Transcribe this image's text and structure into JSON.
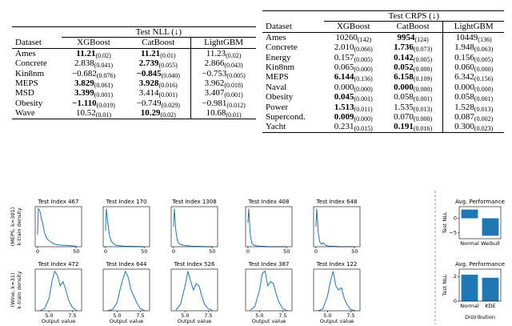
{
  "tables": [
    {
      "caption": "Test NLL (↓)",
      "columns": [
        "Dataset",
        "XGBoost",
        "CatBoost",
        "LightGBM"
      ],
      "rows": [
        {
          "name": "Ames",
          "cells": [
            {
              "value": "11.21",
              "std": "(0.02)",
              "bold": true
            },
            {
              "value": "11.21",
              "std": "(0.01)",
              "bold": true
            },
            {
              "value": "11.23",
              "std": "(0.02)",
              "bold": false
            }
          ]
        },
        {
          "name": "Concrete",
          "cells": [
            {
              "value": "2.838",
              "std": "(0.041)",
              "bold": false
            },
            {
              "value": "2.739",
              "std": "(0.055)",
              "bold": true
            },
            {
              "value": "2.866",
              "std": "(0.043)",
              "bold": false
            }
          ]
        },
        {
          "name": "Kin8nm",
          "cells": [
            {
              "value": "−0.682",
              "std": "(0.076)",
              "bold": false
            },
            {
              "value": "−0.845",
              "std": "(0.040)",
              "bold": true
            },
            {
              "value": "−0.753",
              "std": "(0.005)",
              "bold": false
            }
          ]
        },
        {
          "name": "MEPS",
          "cells": [
            {
              "value": "3.829",
              "std": "(0.061)",
              "bold": true
            },
            {
              "value": "3.928",
              "std": "(0.016)",
              "bold": true
            },
            {
              "value": "3.962",
              "std": "(0.018)",
              "bold": false
            }
          ]
        },
        {
          "name": "MSD",
          "cells": [
            {
              "value": "3.399",
              "std": "(0.001)",
              "bold": true
            },
            {
              "value": "3.414",
              "std": "(0.001)",
              "bold": false
            },
            {
              "value": "3.407",
              "std": "(0.001)",
              "bold": false
            }
          ]
        },
        {
          "name": "Obesity",
          "cells": [
            {
              "value": "−1.110",
              "std": "(0.019)",
              "bold": true
            },
            {
              "value": "−0.749",
              "std": "(0.029)",
              "bold": false
            },
            {
              "value": "−0.981",
              "std": "(0.012)",
              "bold": false
            }
          ]
        },
        {
          "name": "Wave",
          "cells": [
            {
              "value": "10.52",
              "std": "(0.01)",
              "bold": false
            },
            {
              "value": "10.29",
              "std": "(0.02)",
              "bold": true
            },
            {
              "value": "10.68",
              "std": "(0.01)",
              "bold": false
            }
          ]
        }
      ]
    },
    {
      "caption": "Test CRPS (↓)",
      "columns": [
        "Dataset",
        "XGBoost",
        "CatBoost",
        "LightGBM"
      ],
      "rows": [
        {
          "name": "Ames",
          "cells": [
            {
              "value": "10260",
              "std": "(142)",
              "bold": false
            },
            {
              "value": "9954",
              "std": "(124)",
              "bold": true
            },
            {
              "value": "10449",
              "std": "(136)",
              "bold": false
            }
          ]
        },
        {
          "name": "Concrete",
          "cells": [
            {
              "value": "2.010",
              "std": "(0.066)",
              "bold": false
            },
            {
              "value": "1.736",
              "std": "(0.073)",
              "bold": true
            },
            {
              "value": "1.948",
              "std": "(0.063)",
              "bold": false
            }
          ]
        },
        {
          "name": "Energy",
          "cells": [
            {
              "value": "0.157",
              "std": "(0.005)",
              "bold": false
            },
            {
              "value": "0.142",
              "std": "(0.005)",
              "bold": true
            },
            {
              "value": "0.156",
              "std": "(0.005)",
              "bold": false
            }
          ]
        },
        {
          "name": "Kin8nm",
          "cells": [
            {
              "value": "0.065",
              "std": "(0.000)",
              "bold": false
            },
            {
              "value": "0.052",
              "std": "(0.000)",
              "bold": true
            },
            {
              "value": "0.060",
              "std": "(0.000)",
              "bold": false
            }
          ]
        },
        {
          "name": "MEPS",
          "cells": [
            {
              "value": "6.144",
              "std": "(0.136)",
              "bold": true
            },
            {
              "value": "6.158",
              "std": "(0.109)",
              "bold": true
            },
            {
              "value": "6.342",
              "std": "(0.156)",
              "bold": false
            }
          ]
        },
        {
          "name": "Naval",
          "cells": [
            {
              "value": "0.000",
              "std": "(0.000)",
              "bold": false
            },
            {
              "value": "0.000",
              "std": "(0.000)",
              "bold": true
            },
            {
              "value": "0.000",
              "std": "(0.000)",
              "bold": false
            }
          ]
        },
        {
          "name": "Obesity",
          "cells": [
            {
              "value": "0.045",
              "std": "(0.001)",
              "bold": true
            },
            {
              "value": "0.058",
              "std": "(0.001)",
              "bold": false
            },
            {
              "value": "0.058",
              "std": "(0.001)",
              "bold": false
            }
          ]
        },
        {
          "name": "Power",
          "cells": [
            {
              "value": "1.513",
              "std": "(0.011)",
              "bold": true
            },
            {
              "value": "1.535",
              "std": "(0.013)",
              "bold": false
            },
            {
              "value": "1.528",
              "std": "(0.013)",
              "bold": false
            }
          ]
        },
        {
          "name": "Supercond.",
          "cells": [
            {
              "value": "0.009",
              "std": "(0.000)",
              "bold": true
            },
            {
              "value": "0.070",
              "std": "(0.000)",
              "bold": false
            },
            {
              "value": "0.087",
              "std": "(0.002)",
              "bold": false
            }
          ]
        },
        {
          "name": "Yacht",
          "cells": [
            {
              "value": "0.231",
              "std": "(0.015)",
              "bold": false
            },
            {
              "value": "0.191",
              "std": "(0.016)",
              "bold": true
            },
            {
              "value": "0.300",
              "std": "(0.023)",
              "bold": false
            }
          ]
        }
      ]
    }
  ],
  "chart_data": [
    {
      "type": "line",
      "title": "Test Index 467",
      "row_label": "(MEPS, k=301)",
      "ylabel": "k-train density",
      "color": "#1f77b4",
      "xlim": [
        -3,
        57
      ],
      "xticks": [
        0,
        50
      ],
      "ylim": [
        0,
        1
      ],
      "x": [
        0,
        1,
        3,
        5,
        7,
        9,
        12,
        15,
        20,
        25,
        30,
        40,
        50
      ],
      "values": [
        0.3,
        0.95,
        0.9,
        0.7,
        0.55,
        0.35,
        0.2,
        0.15,
        0.08,
        0.05,
        0.04,
        0.03,
        0.01
      ]
    },
    {
      "type": "line",
      "title": "Test Index 170",
      "color": "#1f77b4",
      "xlim": [
        -3,
        57
      ],
      "xticks": [
        0,
        50
      ],
      "ylim": [
        0,
        1
      ],
      "x": [
        0,
        1,
        3,
        5,
        7,
        9,
        12,
        15,
        20,
        25,
        30,
        40,
        50
      ],
      "values": [
        0.4,
        0.95,
        0.6,
        0.3,
        0.15,
        0.1,
        0.05,
        0.03,
        0.02,
        0.01,
        0.01,
        0.005,
        0
      ]
    },
    {
      "type": "line",
      "title": "Test Index 1308",
      "color": "#1f77b4",
      "xlim": [
        -3,
        57
      ],
      "xticks": [
        0,
        50
      ],
      "ylim": [
        0,
        1
      ],
      "x": [
        0,
        1,
        3,
        5,
        7,
        9,
        12,
        15,
        20,
        25,
        30,
        40,
        50
      ],
      "values": [
        0.5,
        0.95,
        0.4,
        0.15,
        0.08,
        0.06,
        0.04,
        0.03,
        0.02,
        0.01,
        0.01,
        0,
        0
      ]
    },
    {
      "type": "line",
      "title": "Test Index 408",
      "color": "#1f77b4",
      "xlim": [
        -3,
        57
      ],
      "xticks": [
        0,
        50
      ],
      "ylim": [
        0,
        1
      ],
      "x": [
        0,
        1,
        3,
        5,
        7,
        9,
        12,
        15,
        20,
        25,
        30,
        40,
        50
      ],
      "values": [
        0.6,
        0.95,
        0.3,
        0.1,
        0.05,
        0.03,
        0.02,
        0.01,
        0.01,
        0,
        0,
        0,
        0
      ]
    },
    {
      "type": "line",
      "title": "Test Index 648",
      "color": "#1f77b4",
      "xlim": [
        -3,
        57
      ],
      "xticks": [
        0,
        50
      ],
      "ylim": [
        0,
        1
      ],
      "x": [
        0,
        1,
        3,
        5,
        7,
        9,
        12,
        15,
        20,
        25,
        30,
        40,
        50
      ],
      "values": [
        0.5,
        0.95,
        0.35,
        0.12,
        0.06,
        0.1,
        0.04,
        0.02,
        0.01,
        0.01,
        0,
        0,
        0
      ]
    },
    {
      "type": "line",
      "title": "Test Index 472",
      "row_label": "(Wine, k=31)",
      "ylabel": "k-train density",
      "xlabel": "Output value",
      "color": "#1f77b4",
      "xlim": [
        3.5,
        8.5
      ],
      "xticks": [
        {
          "value": 5,
          "label": "5.0"
        },
        {
          "value": 7.5,
          "label": "7.5"
        }
      ],
      "ylim": [
        0,
        1
      ],
      "x": [
        4,
        4.5,
        5,
        5.3,
        5.6,
        5.9,
        6.2,
        6.5,
        6.8,
        7.1,
        7.5,
        8
      ],
      "values": [
        0,
        0.05,
        0.3,
        0.7,
        0.95,
        0.85,
        0.6,
        0.7,
        0.5,
        0.25,
        0.08,
        0
      ]
    },
    {
      "type": "line",
      "title": "Test Index 644",
      "xlabel": "Output value",
      "color": "#1f77b4",
      "xlim": [
        3.5,
        8.5
      ],
      "xticks": [
        {
          "value": 5,
          "label": "5.0"
        },
        {
          "value": 7.5,
          "label": "7.5"
        }
      ],
      "ylim": [
        0,
        1
      ],
      "x": [
        4,
        4.5,
        5,
        5.3,
        5.6,
        5.9,
        6.2,
        6.5,
        6.8,
        7.1,
        7.5,
        8
      ],
      "values": [
        0,
        0.03,
        0.2,
        0.5,
        0.75,
        0.95,
        0.8,
        0.5,
        0.35,
        0.2,
        0.05,
        0
      ]
    },
    {
      "type": "line",
      "title": "Test Index 526",
      "xlabel": "Output value",
      "color": "#1f77b4",
      "xlim": [
        3.5,
        8.5
      ],
      "xticks": [
        {
          "value": 5,
          "label": "5.0"
        },
        {
          "value": 7.5,
          "label": "7.5"
        }
      ],
      "ylim": [
        0,
        1
      ],
      "x": [
        4,
        4.5,
        5,
        5.3,
        5.6,
        5.9,
        6.2,
        6.5,
        6.8,
        7.1,
        7.5,
        8
      ],
      "values": [
        0.02,
        0.15,
        0.6,
        0.95,
        0.7,
        0.5,
        0.65,
        0.6,
        0.35,
        0.15,
        0.05,
        0
      ]
    },
    {
      "type": "line",
      "title": "Test Index 387",
      "xlabel": "Output value",
      "color": "#1f77b4",
      "xlim": [
        3.5,
        8.5
      ],
      "xticks": [
        {
          "value": 5,
          "label": "5.0"
        },
        {
          "value": 7.5,
          "label": "7.5"
        }
      ],
      "ylim": [
        0,
        1
      ],
      "x": [
        4,
        4.5,
        5,
        5.3,
        5.6,
        5.9,
        6.2,
        6.5,
        6.8,
        7.1,
        7.5,
        8
      ],
      "values": [
        0.02,
        0.1,
        0.5,
        0.9,
        0.95,
        0.6,
        0.7,
        0.65,
        0.4,
        0.2,
        0.05,
        0
      ]
    },
    {
      "type": "line",
      "title": "Test Index 122",
      "xlabel": "Output value",
      "color": "#1f77b4",
      "xlim": [
        3.5,
        8.5
      ],
      "xticks": [
        {
          "value": 5,
          "label": "5.0"
        },
        {
          "value": 7.5,
          "label": "7.5"
        }
      ],
      "ylim": [
        0,
        1
      ],
      "x": [
        4,
        4.5,
        5,
        5.3,
        5.6,
        5.9,
        6.2,
        6.5,
        6.8,
        7.1,
        7.5,
        8
      ],
      "values": [
        0,
        0.05,
        0.35,
        0.7,
        0.95,
        0.6,
        0.5,
        0.55,
        0.3,
        0.15,
        0.03,
        0
      ]
    },
    {
      "type": "bar",
      "title": "Avg. Performance",
      "ylabel": "Test NLL",
      "color": "#1f77b4",
      "categories": [
        "Normal",
        "Weibull"
      ],
      "values": [
        3.0,
        -6.0
      ],
      "ylim": [
        -7,
        4
      ],
      "yticks": [
        0,
        {
          "value": -5,
          "label": "−5"
        }
      ]
    },
    {
      "type": "bar",
      "title": "Avg. Performance",
      "ylabel": "Test NLL",
      "xlabel": "Distribution",
      "color": "#1f77b4",
      "categories": [
        "Normal",
        "KDE"
      ],
      "values": [
        2.15,
        1.9
      ],
      "ylim": [
        0,
        2.6
      ],
      "yticks": [
        0,
        2
      ]
    }
  ]
}
